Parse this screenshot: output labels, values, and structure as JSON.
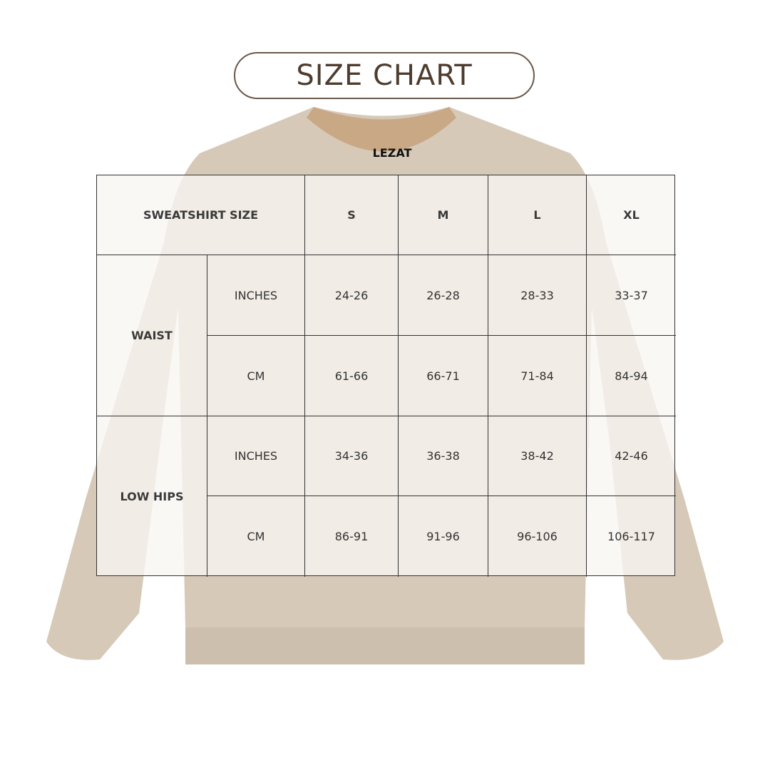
{
  "title": "SIZE CHART",
  "brand_label": "LEZAT",
  "colors": {
    "shirt": "#d6c9b8",
    "title": "#4e3d2e",
    "border": "#333333"
  },
  "table": {
    "header": {
      "label": "SWEATSHIRT SIZE",
      "sizes": [
        "S",
        "M",
        "L",
        "XL"
      ]
    },
    "groups": [
      {
        "label": "WAIST",
        "rows": [
          {
            "unit": "INCHES",
            "values": [
              "24-26",
              "26-28",
              "28-33",
              "33-37"
            ]
          },
          {
            "unit": "CM",
            "values": [
              "61-66",
              "66-71",
              "71-84",
              "84-94"
            ]
          }
        ]
      },
      {
        "label": "LOW HIPS",
        "rows": [
          {
            "unit": "INCHES",
            "values": [
              "34-36",
              "36-38",
              "38-42",
              "42-46"
            ]
          },
          {
            "unit": "CM",
            "values": [
              "86-91",
              "91-96",
              "96-106",
              "106-117"
            ]
          }
        ]
      }
    ]
  }
}
